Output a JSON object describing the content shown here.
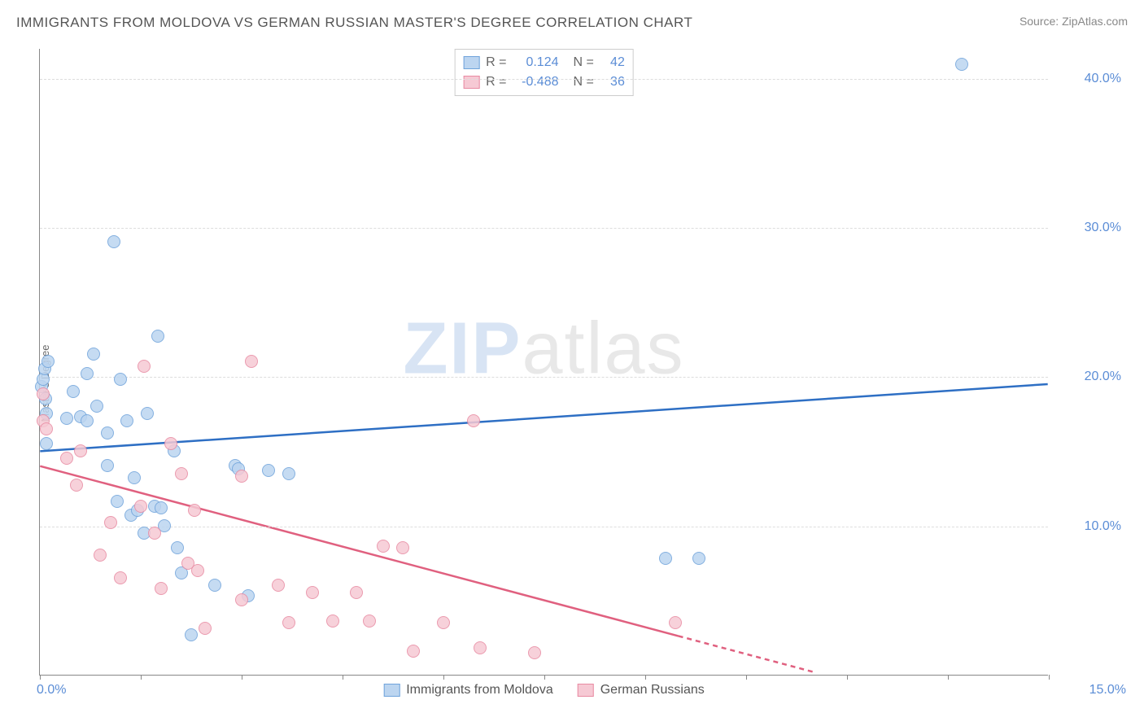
{
  "title": "IMMIGRANTS FROM MOLDOVA VS GERMAN RUSSIAN MASTER'S DEGREE CORRELATION CHART",
  "source_prefix": "Source: ",
  "source_name": "ZipAtlas.com",
  "ylabel": "Master's Degree",
  "watermark_a": "ZIP",
  "watermark_b": "atlas",
  "chart": {
    "type": "scatter",
    "background_color": "#ffffff",
    "grid_color": "#dddddd",
    "axis_color": "#888888",
    "tick_label_color": "#5b8dd6",
    "xlim": [
      0,
      15
    ],
    "ylim": [
      0,
      42
    ],
    "yticks": [
      10,
      20,
      30,
      40
    ],
    "ytick_labels": [
      "10.0%",
      "20.0%",
      "30.0%",
      "40.0%"
    ],
    "xticks": [
      0,
      1.5,
      3.0,
      4.5,
      6.0,
      7.5,
      9.0,
      10.5,
      12.0,
      13.5,
      15.0
    ],
    "xlim_labels": {
      "left": "0.0%",
      "right": "15.0%"
    },
    "marker_radius": 8,
    "marker_stroke_width": 1.2,
    "trend_line_width": 2.5,
    "series": [
      {
        "key": "moldova",
        "label": "Immigrants from Moldova",
        "fill": "#bcd5f0",
        "stroke": "#6fa3db",
        "line_color": "#2e6fc4",
        "R": "0.124",
        "N": "42",
        "trend": {
          "x1": 0,
          "y1": 15.0,
          "x2": 15,
          "y2": 19.5,
          "dashed_from_x": null
        },
        "points": [
          [
            0.02,
            19.3
          ],
          [
            0.05,
            19.8
          ],
          [
            0.07,
            20.5
          ],
          [
            0.08,
            18.5
          ],
          [
            0.1,
            17.5
          ],
          [
            0.1,
            15.5
          ],
          [
            0.12,
            21.0
          ],
          [
            0.6,
            17.3
          ],
          [
            0.7,
            20.2
          ],
          [
            0.7,
            17.0
          ],
          [
            0.8,
            21.5
          ],
          [
            0.85,
            18.0
          ],
          [
            1.0,
            16.2
          ],
          [
            1.0,
            14.0
          ],
          [
            1.1,
            29.0
          ],
          [
            1.2,
            19.8
          ],
          [
            1.3,
            17.0
          ],
          [
            1.35,
            10.7
          ],
          [
            1.4,
            13.2
          ],
          [
            1.45,
            11.0
          ],
          [
            1.55,
            9.5
          ],
          [
            1.6,
            17.5
          ],
          [
            1.7,
            11.3
          ],
          [
            1.75,
            22.7
          ],
          [
            1.8,
            11.2
          ],
          [
            1.85,
            10.0
          ],
          [
            2.0,
            15.0
          ],
          [
            2.05,
            8.5
          ],
          [
            2.1,
            6.8
          ],
          [
            2.25,
            2.7
          ],
          [
            2.6,
            6.0
          ],
          [
            2.9,
            14.0
          ],
          [
            2.95,
            13.8
          ],
          [
            3.1,
            5.3
          ],
          [
            3.4,
            13.7
          ],
          [
            3.7,
            13.5
          ],
          [
            9.3,
            7.8
          ],
          [
            9.8,
            7.8
          ],
          [
            13.7,
            40.9
          ],
          [
            0.4,
            17.2
          ],
          [
            0.5,
            19.0
          ],
          [
            1.15,
            11.6
          ]
        ]
      },
      {
        "key": "german",
        "label": "German Russians",
        "fill": "#f6c9d4",
        "stroke": "#e88aa2",
        "line_color": "#e0607f",
        "R": "-0.488",
        "N": "36",
        "trend": {
          "x1": 0,
          "y1": 14.0,
          "x2": 11.5,
          "y2": 0.2,
          "dashed_from_x": 9.5
        },
        "points": [
          [
            0.05,
            17.0
          ],
          [
            0.05,
            18.8
          ],
          [
            0.1,
            16.5
          ],
          [
            0.4,
            14.5
          ],
          [
            0.55,
            12.7
          ],
          [
            0.6,
            15.0
          ],
          [
            0.9,
            8.0
          ],
          [
            1.05,
            10.2
          ],
          [
            1.5,
            11.3
          ],
          [
            1.55,
            20.7
          ],
          [
            1.7,
            9.5
          ],
          [
            1.8,
            5.8
          ],
          [
            1.95,
            15.5
          ],
          [
            2.1,
            13.5
          ],
          [
            2.2,
            7.5
          ],
          [
            2.3,
            11.0
          ],
          [
            2.35,
            7.0
          ],
          [
            2.45,
            3.1
          ],
          [
            3.0,
            13.3
          ],
          [
            3.0,
            5.0
          ],
          [
            3.15,
            21.0
          ],
          [
            3.55,
            6.0
          ],
          [
            3.7,
            3.5
          ],
          [
            4.05,
            5.5
          ],
          [
            4.35,
            3.6
          ],
          [
            4.7,
            5.5
          ],
          [
            4.9,
            3.6
          ],
          [
            5.1,
            8.6
          ],
          [
            5.4,
            8.5
          ],
          [
            5.55,
            1.6
          ],
          [
            6.0,
            3.5
          ],
          [
            6.45,
            17.0
          ],
          [
            6.55,
            1.8
          ],
          [
            7.35,
            1.5
          ],
          [
            9.45,
            3.5
          ],
          [
            1.2,
            6.5
          ]
        ]
      }
    ]
  },
  "legend_top": {
    "r_label": "R =",
    "n_label": "N ="
  }
}
